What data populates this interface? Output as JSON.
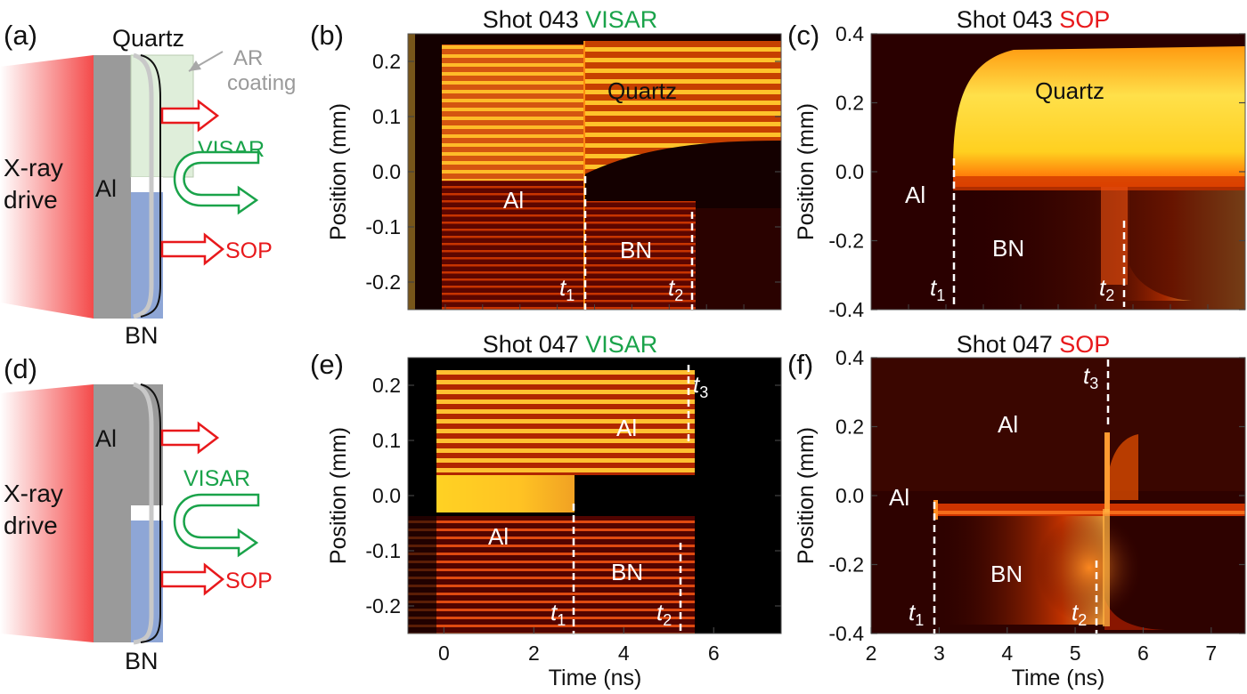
{
  "panels": {
    "a": {
      "label": "(a)",
      "drive": [
        "X-ray",
        "drive"
      ],
      "materials": {
        "quartz": "Quartz",
        "al": "Al",
        "bn": "BN"
      },
      "coating": [
        "AR",
        "coating"
      ],
      "probes": {
        "visar": "VISAR",
        "sop": "SOP"
      }
    },
    "b": {
      "label": "(b)",
      "title": {
        "prefix": "Shot 043 ",
        "diag": "VISAR"
      },
      "ylabel": "Position (mm)",
      "regions": {
        "quartz": "Quartz",
        "al": "Al",
        "bn": "BN"
      },
      "times": {
        "t1": "t",
        "t1_sub": "1",
        "t2": "t",
        "t2_sub": "2"
      }
    },
    "c": {
      "label": "(c)",
      "title": {
        "prefix": "Shot 043 ",
        "diag": "SOP"
      },
      "ylabel": "Position (mm)",
      "regions": {
        "quartz": "Quartz",
        "al": "Al",
        "bn": "BN"
      },
      "times": {
        "t1": "t",
        "t1_sub": "1",
        "t2": "t",
        "t2_sub": "2"
      }
    },
    "d": {
      "label": "(d)",
      "drive": [
        "X-ray",
        "drive"
      ],
      "materials": {
        "al": "Al",
        "bn": "BN"
      },
      "probes": {
        "visar": "VISAR",
        "sop": "SOP"
      }
    },
    "e": {
      "label": "(e)",
      "title": {
        "prefix": "Shot 047 ",
        "diag": "VISAR"
      },
      "ylabel": "Position (mm)",
      "xlabel": "Time (ns)",
      "regions": {
        "al_top": "Al",
        "al": "Al",
        "bn": "BN"
      },
      "times": {
        "t1": "t",
        "t1_sub": "1",
        "t2": "t",
        "t2_sub": "2",
        "t3": "t",
        "t3_sub": "3"
      }
    },
    "f": {
      "label": "(f)",
      "title": {
        "prefix": "Shot 047 ",
        "diag": "SOP"
      },
      "ylabel": "Position (mm)",
      "xlabel": "Time (ns)",
      "regions": {
        "al_top": "Al",
        "al": "Al",
        "bn": "BN"
      },
      "times": {
        "t1": "t",
        "t1_sub": "1",
        "t2": "t",
        "t2_sub": "2",
        "t3": "t",
        "t3_sub": "3"
      }
    }
  },
  "colors": {
    "visar": "#1aa34a",
    "sop": "#e8191c",
    "arrow": "#e8191c",
    "al": "#999999",
    "bn": "#8ea6d6",
    "quartz": "#dfeeda"
  },
  "chart_data": [
    {
      "panel": "b",
      "type": "heatmap",
      "ylim": [
        -0.25,
        0.25
      ],
      "y_ticks": [
        0.2,
        0.1,
        0.0,
        -0.1,
        -0.2
      ],
      "y_tick_labels": [
        "0.2",
        "0.1",
        "0.0",
        "-0.1",
        "-0.2"
      ],
      "events": {
        "t1": 3.25,
        "t2": 5.6
      }
    },
    {
      "panel": "c",
      "type": "heatmap",
      "ylim": [
        -0.4,
        0.4
      ],
      "y_ticks": [
        0.4,
        0.2,
        0.0,
        -0.2,
        -0.4
      ],
      "y_tick_labels": [
        "0.4",
        "0.2",
        "0.0",
        "-0.2",
        "-0.4"
      ],
      "events": {
        "t1": 3.25,
        "t2": 5.7
      }
    },
    {
      "panel": "e",
      "type": "heatmap",
      "xlim": [
        -0.8,
        7.5
      ],
      "ylim": [
        -0.25,
        0.25
      ],
      "x_ticks": [
        0,
        2,
        4,
        6
      ],
      "x_tick_labels": [
        "0",
        "2",
        "4",
        "6"
      ],
      "y_ticks": [
        0.2,
        0.1,
        0.0,
        -0.1,
        -0.2
      ],
      "y_tick_labels": [
        "0.2",
        "0.1",
        "0.0",
        "-0.1",
        "-0.2"
      ],
      "events": {
        "t1": 2.95,
        "t2": 5.3,
        "t3": 5.5
      }
    },
    {
      "panel": "f",
      "type": "heatmap",
      "xlim": [
        2,
        7.5
      ],
      "ylim": [
        -0.4,
        0.4
      ],
      "x_ticks": [
        2,
        3,
        4,
        5,
        6,
        7
      ],
      "x_tick_labels": [
        "2",
        "3",
        "4",
        "5",
        "6",
        "7"
      ],
      "y_ticks": [
        0.4,
        0.2,
        0.0,
        -0.2,
        -0.4
      ],
      "y_tick_labels": [
        "0.4",
        "0.2",
        "0.0",
        "-0.2",
        "-0.4"
      ],
      "events": {
        "t1": 2.95,
        "t2": 5.35,
        "t3": 5.5
      }
    }
  ]
}
